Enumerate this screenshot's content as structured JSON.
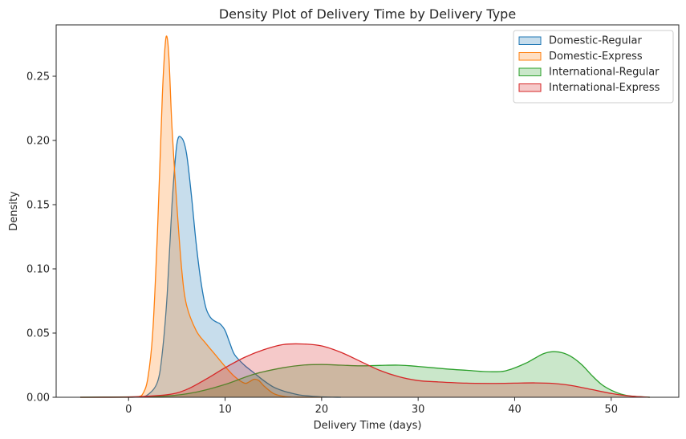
{
  "chart_data": {
    "type": "area",
    "title": "Density Plot of Delivery Time by Delivery Type",
    "xlabel": "Delivery Time (days)",
    "ylabel": "Density",
    "xlim": [
      -7.5,
      57
    ],
    "ylim": [
      0,
      0.29
    ],
    "xticks": [
      0,
      10,
      20,
      30,
      40,
      50
    ],
    "xtick_labels": [
      "0",
      "10",
      "20",
      "30",
      "40",
      "50"
    ],
    "yticks": [
      0,
      0.05,
      0.1,
      0.15,
      0.2,
      0.25
    ],
    "ytick_labels": [
      "0.00",
      "0.05",
      "0.10",
      "0.15",
      "0.20",
      "0.25"
    ],
    "grid": false,
    "legend_position": "top-right",
    "series": [
      {
        "name": "Domestic-Regular",
        "color": "#1f77b4",
        "x": [
          -5,
          -1,
          1,
          2,
          3,
          3.5,
          4,
          4.5,
          5,
          5.5,
          6,
          6.5,
          7,
          7.5,
          8,
          8.5,
          9,
          9.5,
          10,
          10.5,
          11,
          12,
          13,
          14,
          15,
          16,
          17,
          18,
          20,
          22
        ],
        "y": [
          0,
          0,
          0.0002,
          0.002,
          0.012,
          0.035,
          0.08,
          0.15,
          0.197,
          0.202,
          0.19,
          0.158,
          0.12,
          0.09,
          0.07,
          0.062,
          0.059,
          0.057,
          0.052,
          0.042,
          0.033,
          0.025,
          0.019,
          0.013,
          0.008,
          0.005,
          0.003,
          0.0015,
          0.0003,
          0
        ]
      },
      {
        "name": "Domestic-Express",
        "color": "#ff7f0e",
        "x": [
          -5,
          0,
          1,
          1.5,
          2,
          2.5,
          3,
          3.5,
          3.8,
          4,
          4.2,
          4.5,
          5,
          5.5,
          6,
          7,
          8,
          9,
          10,
          11,
          12,
          12.5,
          13,
          13.5,
          14,
          15,
          16,
          17,
          20
        ],
        "y": [
          0,
          0,
          0.0005,
          0.003,
          0.015,
          0.05,
          0.13,
          0.235,
          0.275,
          0.28,
          0.262,
          0.21,
          0.15,
          0.1,
          0.072,
          0.052,
          0.042,
          0.033,
          0.024,
          0.016,
          0.011,
          0.012,
          0.014,
          0.013,
          0.009,
          0.003,
          0.0008,
          0.0001,
          0
        ]
      },
      {
        "name": "International-Regular",
        "color": "#2ca02c",
        "x": [
          -5,
          0,
          4,
          7,
          10,
          13,
          16,
          18,
          20,
          22,
          24,
          26,
          28,
          30,
          33,
          35,
          37,
          39,
          41,
          42,
          43,
          44,
          45,
          46,
          47,
          48,
          49,
          50,
          51,
          52,
          54
        ],
        "y": [
          0,
          0.0003,
          0.001,
          0.004,
          0.01,
          0.018,
          0.023,
          0.025,
          0.0255,
          0.025,
          0.0245,
          0.0248,
          0.025,
          0.024,
          0.022,
          0.021,
          0.02,
          0.0205,
          0.026,
          0.03,
          0.034,
          0.0355,
          0.0345,
          0.031,
          0.025,
          0.017,
          0.01,
          0.0055,
          0.0025,
          0.001,
          0
        ]
      },
      {
        "name": "International-Express",
        "color": "#d62728",
        "x": [
          -5,
          0,
          4,
          6,
          8,
          10,
          12,
          14,
          16,
          18,
          20,
          22,
          24,
          26,
          28,
          30,
          32,
          35,
          38,
          40,
          42,
          44,
          46,
          48,
          50,
          52,
          54
        ],
        "y": [
          0,
          0.0002,
          0.002,
          0.006,
          0.014,
          0.023,
          0.031,
          0.037,
          0.041,
          0.0415,
          0.04,
          0.035,
          0.028,
          0.021,
          0.016,
          0.013,
          0.012,
          0.011,
          0.0108,
          0.011,
          0.0112,
          0.0108,
          0.009,
          0.006,
          0.003,
          0.0009,
          0
        ]
      }
    ]
  }
}
